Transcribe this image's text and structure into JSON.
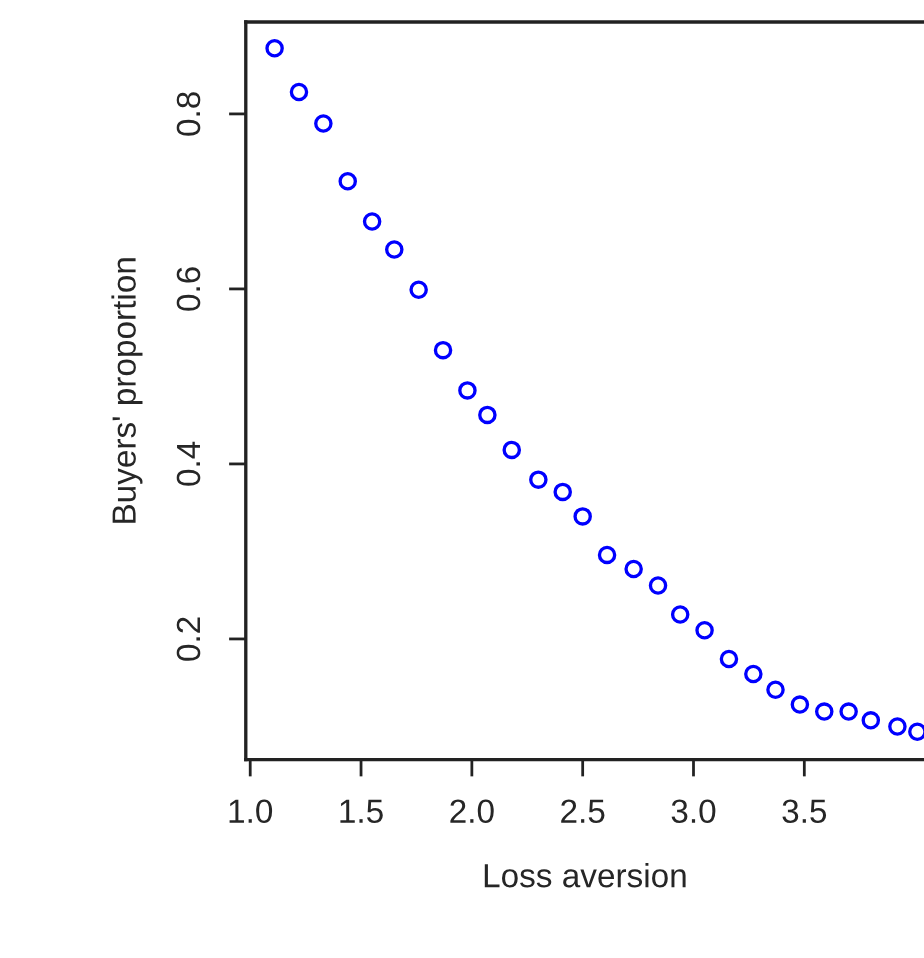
{
  "chart_data": {
    "type": "scatter",
    "xlabel": "Loss aversion",
    "ylabel": "Buyers' proportion",
    "x": [
      1.11,
      1.22,
      1.33,
      1.44,
      1.55,
      1.65,
      1.76,
      1.87,
      1.98,
      2.07,
      2.18,
      2.3,
      2.41,
      2.5,
      2.61,
      2.73,
      2.84,
      2.94,
      3.05,
      3.16,
      3.27,
      3.37,
      3.48,
      3.59,
      3.7,
      3.8,
      3.92,
      4.01
    ],
    "series": [
      {
        "color": "#0000ff",
        "values": [
          0.875,
          0.825,
          0.789,
          0.723,
          0.677,
          0.645,
          0.599,
          0.53,
          0.484,
          0.456,
          0.416,
          0.382,
          0.368,
          0.34,
          0.296,
          0.28,
          0.261,
          0.228,
          0.21,
          0.177,
          0.16,
          0.142,
          0.125,
          0.117,
          0.117,
          0.107,
          0.1,
          0.094
        ]
      }
    ],
    "xlim": [
      0.98,
      4.04
    ],
    "ylim": [
      0.062,
      0.905
    ],
    "xticks": [
      {
        "value": 1,
        "label": "1.0"
      },
      1.5,
      {
        "value": 2,
        "label": "2.0"
      },
      2.5,
      {
        "value": 3,
        "label": "3.0"
      },
      3.5
    ],
    "yticks": [
      0.2,
      0.4,
      0.6,
      0.8
    ],
    "marker": "circle",
    "grid": false,
    "legend": false
  }
}
